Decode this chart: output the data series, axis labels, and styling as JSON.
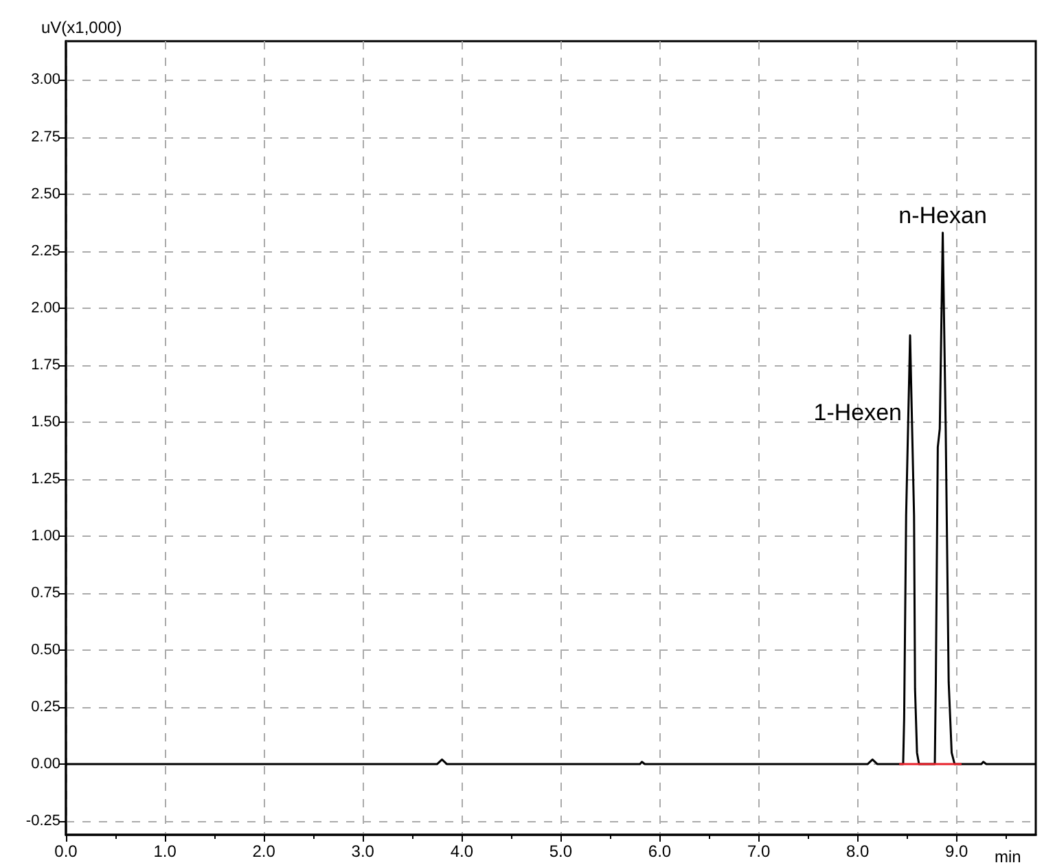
{
  "chart_data": {
    "type": "line",
    "xlabel": "min",
    "ylabel": "uV(x1,000)",
    "xlim": [
      0,
      9.8
    ],
    "ylim": [
      -0.31,
      3.17
    ],
    "xticks": [
      {
        "value": 0,
        "label": "0.0"
      },
      {
        "value": 1,
        "label": "1.0"
      },
      {
        "value": 2,
        "label": "2.0"
      },
      {
        "value": 3,
        "label": "3.0"
      },
      {
        "value": 4,
        "label": "4.0"
      },
      {
        "value": 5,
        "label": "5.0"
      },
      {
        "value": 6,
        "label": "6.0"
      },
      {
        "value": 7,
        "label": "7.0"
      },
      {
        "value": 8,
        "label": "8.0"
      },
      {
        "value": 9,
        "label": "9.0"
      }
    ],
    "yticks": [
      {
        "value": -0.25,
        "label": "-0.25"
      },
      {
        "value": 0,
        "label": "0.00"
      },
      {
        "value": 0.25,
        "label": "0.25"
      },
      {
        "value": 0.5,
        "label": "0.50"
      },
      {
        "value": 0.75,
        "label": "0.75"
      },
      {
        "value": 1,
        "label": "1.00"
      },
      {
        "value": 1.25,
        "label": "1.25"
      },
      {
        "value": 1.5,
        "label": "1.50"
      },
      {
        "value": 1.75,
        "label": "1.75"
      },
      {
        "value": 2,
        "label": "2.00"
      },
      {
        "value": 2.25,
        "label": "2.25"
      },
      {
        "value": 2.5,
        "label": "2.50"
      },
      {
        "value": 2.75,
        "label": "2.75"
      },
      {
        "value": 3,
        "label": "3.00"
      }
    ],
    "grid": true,
    "marker": "none",
    "series": [
      {
        "color": "#000000",
        "x": [
          0,
          3.75,
          3.8,
          3.85,
          5.8,
          5.82,
          5.85,
          8.1,
          8.15,
          8.2,
          8.46,
          8.47,
          8.49,
          8.53,
          8.57,
          8.58,
          8.6,
          8.62,
          8.78,
          8.79,
          8.81,
          8.83,
          8.86,
          8.89,
          8.92,
          8.95,
          8.98,
          9.25,
          9.27,
          9.3,
          9.8
        ],
        "values": [
          0,
          0,
          0.02,
          0,
          0,
          0.01,
          0,
          0,
          0.02,
          0,
          0,
          0.2,
          1.09,
          1.88,
          1.09,
          0.33,
          0.05,
          0,
          0,
          0.36,
          1.39,
          1.47,
          2.33,
          1.47,
          0.36,
          0.05,
          0,
          0,
          0.01,
          0,
          0
        ]
      },
      {
        "color": "#e8202a",
        "x": [
          8.42,
          9.05
        ],
        "values": [
          0,
          0
        ]
      }
    ],
    "annotations": [
      {
        "text": "1-Hexen",
        "x": 8.53,
        "y": 1.88
      },
      {
        "text": "n-Hexan",
        "x": 8.86,
        "y": 2.33
      }
    ]
  }
}
